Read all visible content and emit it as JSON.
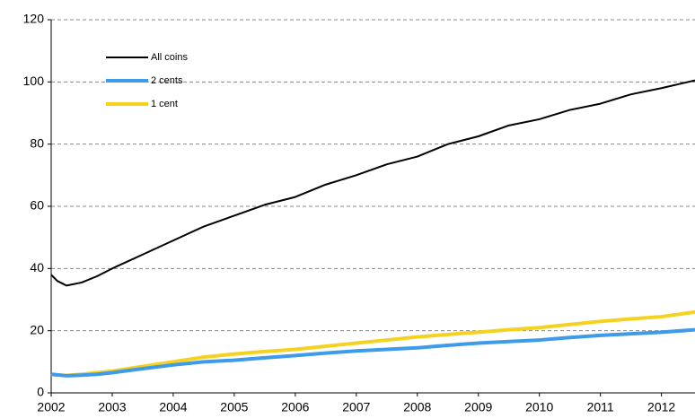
{
  "chart_data": {
    "type": "line",
    "x": [
      2002,
      2002.1,
      2002.25,
      2002.5,
      2002.75,
      2003,
      2003.5,
      2004,
      2004.5,
      2005,
      2005.5,
      2006,
      2006.5,
      2007,
      2007.5,
      2008,
      2008.5,
      2009,
      2009.5,
      2010,
      2010.5,
      2011,
      2011.5,
      2012,
      2012.55
    ],
    "series": [
      {
        "name": "All coins",
        "color": "#000000",
        "values": [
          38,
          36,
          34.5,
          35.5,
          37.5,
          40,
          44.5,
          49,
          53.5,
          57,
          60.5,
          63,
          67,
          70,
          73.5,
          76,
          80,
          82.5,
          86,
          88,
          91,
          93,
          96,
          98,
          100.5
        ]
      },
      {
        "name": "2 cents",
        "color": "#3d9be9",
        "values": [
          6,
          5.8,
          5.5,
          5.7,
          6,
          6.5,
          7.8,
          9,
          10,
          10.5,
          11.3,
          12,
          12.8,
          13.5,
          14,
          14.5,
          15.3,
          16,
          16.5,
          17,
          17.8,
          18.5,
          19,
          19.5,
          20.3
        ]
      },
      {
        "name": "1 cent",
        "color": "#f5d21f",
        "values": [
          6,
          5.8,
          5.6,
          6,
          6.5,
          7,
          8.5,
          10,
          11.5,
          12.5,
          13.3,
          14,
          15,
          16,
          17,
          18,
          18.8,
          19.5,
          20.3,
          21,
          22,
          23,
          23.8,
          24.5,
          26
        ]
      }
    ],
    "xlim": [
      2002,
      2012.55
    ],
    "xticks": [
      2002,
      2003,
      2004,
      2005,
      2006,
      2007,
      2008,
      2009,
      2010,
      2011,
      2012
    ],
    "ylim": [
      0,
      120
    ],
    "yticks": [
      0,
      20,
      40,
      60,
      80,
      100,
      120
    ],
    "grid": true,
    "legend": "upper left"
  }
}
